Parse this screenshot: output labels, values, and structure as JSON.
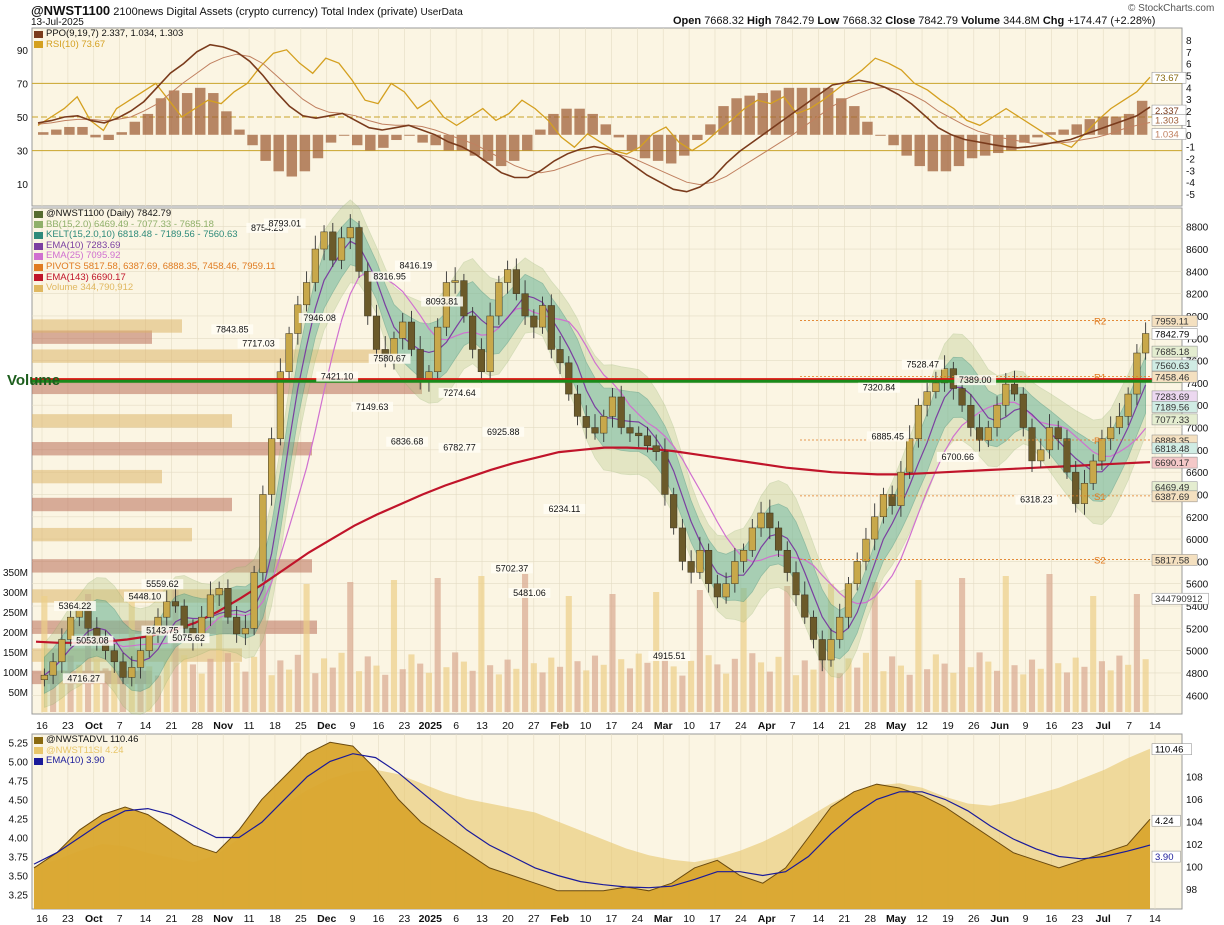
{
  "header": {
    "symbol": "@NWST1100",
    "name": "2100news Digital Assets (crypto currency) Total Index (private)",
    "tag": "UserData",
    "date": "13-Jul-2025",
    "ohlc": {
      "open_label": "Open",
      "open": "7668.32",
      "high_label": "High",
      "high": "7842.79",
      "low_label": "Low",
      "low": "7668.32",
      "close_label": "Close",
      "close": "7842.79",
      "volume_label": "Volume",
      "volume": "344.8M",
      "chg_label": "Chg",
      "chg": "+174.47 (+2.28%)"
    },
    "brand": "© StockCharts.com"
  },
  "top_panel": {
    "legend": [
      {
        "text": "PPO(9,19,7) 2.337, 1.034, 1.303",
        "color": "#7a3b1c"
      },
      {
        "text": "RSI(10) 73.67",
        "color": "#d4a020"
      }
    ]
  },
  "price_panel": {
    "legend": [
      {
        "text": "@NWST1100 (Daily) 7842.79",
        "color": "#556b2f"
      },
      {
        "text": "BB(15,2.0) 6469.49 - 7077.33 - 7685.18",
        "color": "#8fb06a"
      },
      {
        "text": "KELT(15,2.0,10) 6818.48 - 7189.56 - 7560.63",
        "color": "#2e8b7a"
      },
      {
        "text": "EMA(10) 7283.69",
        "color": "#7b3fa0"
      },
      {
        "text": "EMA(25) 7095.92",
        "color": "#d070d0"
      },
      {
        "text": "PIVOTS 5817.58, 6387.69, 6888.35, 7458.46, 7959.11",
        "color": "#e07b20"
      },
      {
        "text": "EMA(143) 6690.17",
        "color": "#c0142a"
      },
      {
        "text": "Volume 344,790,912",
        "color": "#e0b860"
      }
    ],
    "volume_word": "Volume",
    "pivot_labels": [
      "R2",
      "R1",
      "P",
      "S1",
      "S2"
    ]
  },
  "bottom_panel": {
    "legend": [
      {
        "text": "@NWSTADVL 110.46",
        "color": "#8a6a10"
      },
      {
        "text": "@NWST11SI 4.24",
        "color": "#e8c66a"
      },
      {
        "text": "EMA(10) 3.90",
        "color": "#1a1a9a"
      }
    ]
  },
  "chart_data": [
    {
      "type": "line",
      "panel": "PPO / RSI",
      "left_axis_ticks": [
        10,
        30,
        50,
        70,
        90
      ],
      "right_axis_ticks": [
        -5,
        -4,
        -3,
        -2,
        -1,
        0,
        1,
        2,
        3,
        4,
        5,
        6,
        7,
        8
      ],
      "right_axis_labels": [
        "73.67",
        "2.337",
        "1.303",
        "1.034"
      ],
      "rsi_reference_lines": [
        30,
        50,
        70
      ],
      "series": [
        {
          "name": "RSI(10)",
          "color": "#d4a020",
          "values": [
            45,
            50,
            55,
            62,
            48,
            42,
            55,
            60,
            65,
            70,
            60,
            50,
            55,
            60,
            58,
            65,
            70,
            80,
            88,
            90,
            82,
            76,
            85,
            82,
            72,
            60,
            58,
            70,
            65,
            55,
            60,
            50,
            45,
            50,
            55,
            48,
            52,
            60,
            55,
            48,
            38,
            32,
            40,
            35,
            30,
            28,
            32,
            40,
            44,
            35,
            30,
            35,
            42,
            48,
            55,
            60,
            58,
            62,
            52,
            55,
            60,
            66,
            72,
            78,
            85,
            82,
            78,
            70,
            66,
            60,
            55,
            48,
            45,
            50,
            55,
            50,
            45,
            40,
            35,
            32,
            40,
            48,
            55,
            60,
            65,
            73.67
          ]
        },
        {
          "name": "PPO(9,19,7)",
          "color": "#7a3b1c",
          "values": [
            1.0,
            1.2,
            1.5,
            1.6,
            1.2,
            1.0,
            1.4,
            2.0,
            2.8,
            4.0,
            5.2,
            6.0,
            7.0,
            7.6,
            7.4,
            7.0,
            6.2,
            5.0,
            3.6,
            2.4,
            1.6,
            1.4,
            1.6,
            1.8,
            1.2,
            0.6,
            0.4,
            0.6,
            0.8,
            0.4,
            0.0,
            -0.6,
            -1.0,
            -1.6,
            -2.4,
            -3.2,
            -3.6,
            -3.6,
            -3.0,
            -2.2,
            -1.6,
            -1.2,
            -1.0,
            -1.2,
            -1.8,
            -2.6,
            -3.4,
            -4.0,
            -4.6,
            -4.8,
            -4.4,
            -3.6,
            -2.4,
            -1.4,
            -0.6,
            0.2,
            1.0,
            1.8,
            2.6,
            3.4,
            4.2,
            4.4,
            4.6,
            4.4,
            4.0,
            3.4,
            2.6,
            1.6,
            0.6,
            0.0,
            -0.4,
            -0.6,
            -0.8,
            -1.0,
            -1.1,
            -1.0,
            -0.8,
            -0.6,
            -0.4,
            0.0,
            0.4,
            0.8,
            1.2,
            1.6,
            2.337
          ]
        },
        {
          "name": "PPO signal",
          "color": "#c08060",
          "values": [
            0.9,
            1.0,
            1.2,
            1.3,
            1.3,
            1.2,
            1.3,
            1.5,
            2.0,
            2.6,
            3.5,
            4.4,
            5.2,
            6.0,
            6.5,
            6.8,
            6.6,
            6.0,
            5.0,
            4.0,
            3.0,
            2.3,
            1.9,
            1.8,
            1.6,
            1.2,
            0.9,
            0.8,
            0.8,
            0.7,
            0.4,
            0.0,
            -0.4,
            -0.8,
            -1.4,
            -2.0,
            -2.6,
            -3.0,
            -3.2,
            -3.0,
            -2.6,
            -2.2,
            -1.8,
            -1.6,
            -1.7,
            -2.0,
            -2.5,
            -3.0,
            -3.5,
            -4.0,
            -4.2,
            -4.0,
            -3.5,
            -2.8,
            -2.1,
            -1.4,
            -0.7,
            0.0,
            0.8,
            1.6,
            2.4,
            3.0,
            3.5,
            3.9,
            4.0,
            3.8,
            3.4,
            2.8,
            2.0,
            1.4,
            0.8,
            0.3,
            0.0,
            -0.3,
            -0.5,
            -0.7,
            -0.7,
            -0.7,
            -0.6,
            -0.4,
            -0.2,
            0.1,
            0.5,
            0.8,
            1.034
          ]
        }
      ],
      "histogram_name": "PPO histogram",
      "histogram_last": 1.303
    },
    {
      "type": "candlestick",
      "panel": "Price (Daily)",
      "x_tick_labels": [
        "16",
        "23",
        "Oct",
        "7",
        "14",
        "21",
        "28",
        "Nov",
        "11",
        "18",
        "25",
        "Dec",
        "9",
        "16",
        "23",
        "2025",
        "6",
        "13",
        "20",
        "27",
        "Feb",
        "10",
        "17",
        "24",
        "Mar",
        "10",
        "17",
        "24",
        "Apr",
        "7",
        "14",
        "21",
        "28",
        "May",
        "12",
        "19",
        "26",
        "Jun",
        "9",
        "16",
        "23",
        "Jul",
        "7",
        "14"
      ],
      "y_ticks": [
        4600,
        4800,
        5000,
        5200,
        5400,
        5600,
        5800,
        6000,
        6200,
        6400,
        6600,
        6800,
        7000,
        7200,
        7400,
        7600,
        7800,
        8000,
        8200,
        8400,
        8600,
        8800
      ],
      "right_axis_labels": [
        "7959.11",
        "7842.79",
        "7685.18",
        "7560.63",
        "7458.46",
        "7283.69",
        "7189.56",
        "7077.33",
        "6888.35",
        "6818.48",
        "6690.17",
        "6469.49",
        "6387.69",
        "5817.58",
        "344790912"
      ],
      "volume_axis_ticks": [
        "50M",
        "100M",
        "150M",
        "200M",
        "250M",
        "300M",
        "350M"
      ],
      "annotations": [
        "8754.25",
        "8793.01",
        "8316.95",
        "8416.19",
        "8093.81",
        "7843.85",
        "7946.08",
        "7717.03",
        "7421.10",
        "7580.67",
        "7149.63",
        "7274.64",
        "6925.88",
        "6836.68",
        "6782.77",
        "6234.11",
        "5702.37",
        "5481.06",
        "4915.51",
        "5364.22",
        "5448.10",
        "5559.62",
        "5053.08",
        "5143.75",
        "5075.62",
        "4716.27",
        "7528.47",
        "7320.84",
        "7389.00",
        "6885.45",
        "6700.66",
        "6318.23"
      ],
      "horizontal_lines": [
        {
          "name": "resistance",
          "value": 7430,
          "color": "#e01010"
        },
        {
          "name": "support",
          "value": 7415,
          "color": "#1a8a1a"
        }
      ],
      "pivots": {
        "S2": 5817.58,
        "S1": 6387.69,
        "P": 6888.35,
        "R1": 7458.46,
        "R2": 7959.11
      },
      "series": [
        {
          "name": "@NWST1100",
          "color": "#556b2f",
          "values": [
            4780,
            4900,
            5100,
            5300,
            5364,
            5200,
            5060,
            5000,
            4900,
            4760,
            4850,
            5000,
            5150,
            5300,
            5440,
            5400,
            5200,
            5100,
            5300,
            5500,
            5559,
            5300,
            5150,
            5200,
            5700,
            6400,
            6900,
            7500,
            7843,
            8100,
            8300,
            8600,
            8754,
            8500,
            8700,
            8793,
            8400,
            8000,
            7700,
            7600,
            7800,
            7946,
            7700,
            7421,
            7500,
            7900,
            8300,
            8317,
            8000,
            7700,
            7500,
            8000,
            8300,
            8416,
            8200,
            8000,
            7900,
            8094,
            7700,
            7580,
            7300,
            7100,
            7000,
            6950,
            7100,
            7274,
            7000,
            6950,
            6926,
            6837,
            6783,
            6400,
            6100,
            5800,
            5702,
            5900,
            5600,
            5481,
            5600,
            5800,
            5900,
            6100,
            6234,
            6100,
            5900,
            5700,
            5500,
            5300,
            5100,
            4916,
            5100,
            5300,
            5600,
            5800,
            6000,
            6200,
            6400,
            6300,
            6600,
            6900,
            7200,
            7321,
            7400,
            7528,
            7350,
            7200,
            7000,
            6885,
            7000,
            7200,
            7389,
            7300,
            7000,
            6701,
            6800,
            7000,
            6900,
            6600,
            6318,
            6500,
            6700,
            6900,
            7000,
            7100,
            7300,
            7668,
            7842.79
          ]
        },
        {
          "name": "EMA(143)",
          "color": "#c0142a",
          "values": [
            5080,
            5070,
            5070,
            5080,
            5100,
            5130,
            5180,
            5250,
            5350,
            5470,
            5600,
            5740,
            5880,
            6000,
            6120,
            6220,
            6310,
            6400,
            6480,
            6550,
            6620,
            6680,
            6730,
            6780,
            6800,
            6820,
            6820,
            6810,
            6790,
            6760,
            6730,
            6700,
            6670,
            6640,
            6620,
            6600,
            6590,
            6580,
            6580,
            6590,
            6600,
            6610,
            6620,
            6630,
            6640,
            6650,
            6660,
            6670,
            6680,
            6690.17
          ]
        }
      ]
    },
    {
      "type": "area",
      "panel": "@NWSTADVL / @NWST11SI",
      "left_axis_ticks": [
        3.25,
        3.5,
        3.75,
        4.0,
        4.25,
        4.5,
        4.75,
        5.0,
        5.25
      ],
      "right_axis_ticks": [
        98,
        100,
        102,
        104,
        106,
        108
      ],
      "right_axis_labels": [
        "110.46",
        "4.24",
        "3.90"
      ],
      "series": [
        {
          "name": "@NWSTADVL",
          "color": "#e8c66a",
          "values": [
            100.0,
            100.6,
            101.4,
            102.0,
            101.8,
            101.2,
            100.8,
            100.4,
            101.0,
            102.5,
            104.0,
            105.5,
            106.8,
            107.8,
            108.4,
            108.6,
            108.2,
            107.4,
            106.6,
            106.0,
            105.6,
            105.2,
            104.8,
            104.0,
            103.2,
            102.4,
            101.6,
            101.0,
            100.6,
            100.4,
            100.8,
            101.4,
            102.2,
            103.2,
            104.4,
            105.6,
            106.6,
            107.2,
            107.4,
            107.0,
            106.2,
            105.6,
            105.4,
            105.8,
            106.4,
            107.0,
            107.8,
            108.6,
            109.6,
            110.46
          ]
        },
        {
          "name": "@NWST11SI",
          "color": "#d9a62e",
          "values": [
            3.6,
            3.8,
            4.1,
            4.3,
            4.4,
            4.3,
            4.1,
            3.9,
            3.8,
            4.1,
            4.5,
            4.8,
            5.1,
            5.25,
            5.2,
            4.9,
            4.5,
            4.2,
            4.0,
            3.8,
            3.6,
            3.5,
            3.4,
            3.3,
            3.3,
            3.3,
            3.35,
            3.3,
            3.4,
            3.6,
            3.7,
            3.5,
            3.4,
            3.6,
            4.0,
            4.4,
            4.6,
            4.7,
            4.65,
            4.55,
            4.4,
            4.2,
            4.0,
            3.8,
            3.7,
            3.6,
            3.7,
            3.8,
            3.9,
            4.24
          ]
        },
        {
          "name": "EMA(10)",
          "color": "#1a1a9a",
          "values": [
            3.65,
            3.8,
            4.0,
            4.2,
            4.35,
            4.38,
            4.3,
            4.15,
            4.0,
            4.0,
            4.2,
            4.5,
            4.8,
            5.0,
            5.1,
            5.05,
            4.85,
            4.6,
            4.35,
            4.1,
            3.9,
            3.75,
            3.6,
            3.5,
            3.42,
            3.38,
            3.35,
            3.34,
            3.36,
            3.45,
            3.55,
            3.55,
            3.5,
            3.55,
            3.75,
            4.05,
            4.3,
            4.5,
            4.6,
            4.6,
            4.5,
            4.35,
            4.15,
            3.98,
            3.85,
            3.75,
            3.72,
            3.75,
            3.82,
            3.9
          ]
        }
      ]
    }
  ]
}
